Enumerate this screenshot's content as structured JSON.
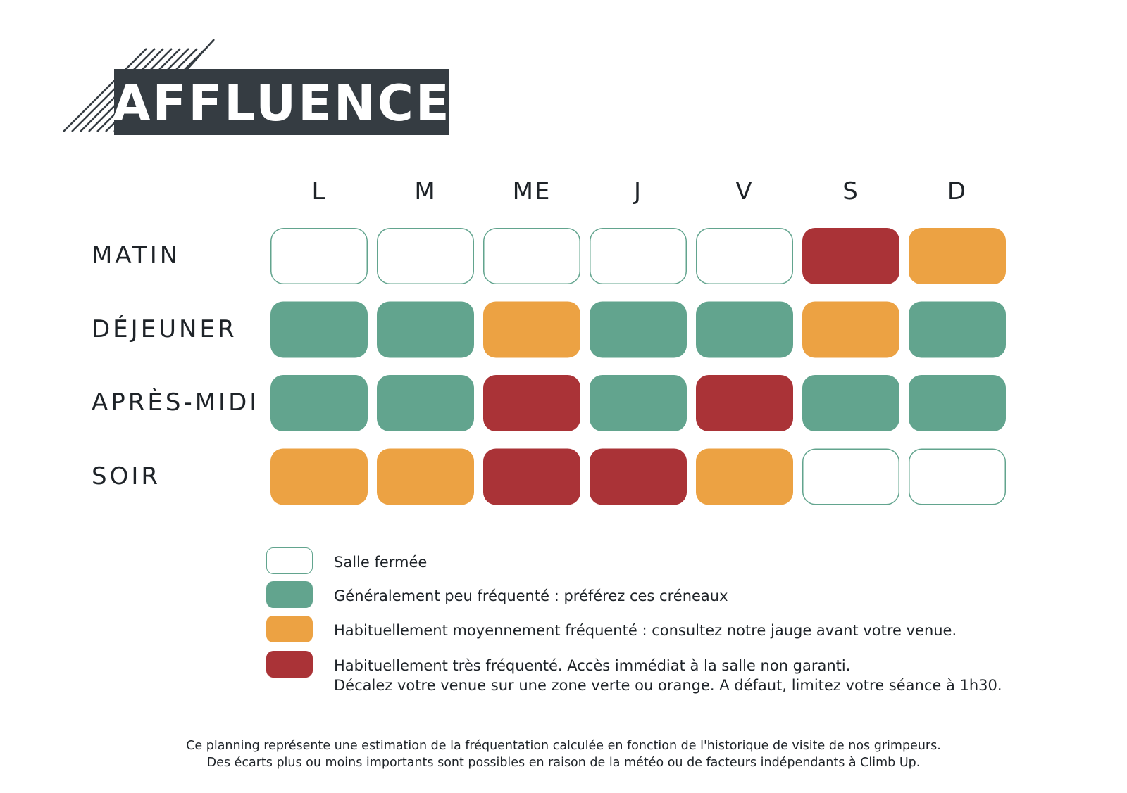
{
  "title": "AFFLUENCE",
  "chart_data": {
    "type": "heatmap",
    "title": "AFFLUENCE",
    "columns": [
      "L",
      "M",
      "ME",
      "J",
      "V",
      "S",
      "D"
    ],
    "rows": [
      "MATIN",
      "DÉJEUNER",
      "APRÈS-MIDI",
      "SOIR"
    ],
    "levels": [
      [
        "closed",
        "closed",
        "closed",
        "closed",
        "closed",
        "high",
        "medium"
      ],
      [
        "low",
        "low",
        "medium",
        "low",
        "low",
        "medium",
        "low"
      ],
      [
        "low",
        "low",
        "high",
        "low",
        "high",
        "low",
        "low"
      ],
      [
        "medium",
        "medium",
        "high",
        "high",
        "medium",
        "closed",
        "closed"
      ]
    ],
    "colors": {
      "closed": "#ffffff",
      "closed_border": "#62a48e",
      "low": "#62a48e",
      "medium": "#eca243",
      "high": "#aa3337"
    }
  },
  "legend": [
    {
      "level": "closed",
      "lines": [
        "Salle fermée"
      ]
    },
    {
      "level": "low",
      "lines": [
        "Généralement peu fréquenté : préférez ces créneaux"
      ]
    },
    {
      "level": "medium",
      "lines": [
        "Habituellement moyennement fréquenté : consultez notre jauge avant votre venue."
      ]
    },
    {
      "level": "high",
      "lines": [
        "Habituellement très fréquenté. Accès immédiat à la salle non garanti.",
        "Décalez votre venue sur une zone verte ou orange. A défaut, limitez votre séance à 1h30."
      ]
    }
  ],
  "footnote": [
    "Ce planning représente une estimation de la fréquentation calculée en fonction de l'historique de visite de nos grimpeurs.",
    "Des écarts plus ou moins importants sont possibles en raison de la météo ou de facteurs indépendants à Climb Up."
  ]
}
